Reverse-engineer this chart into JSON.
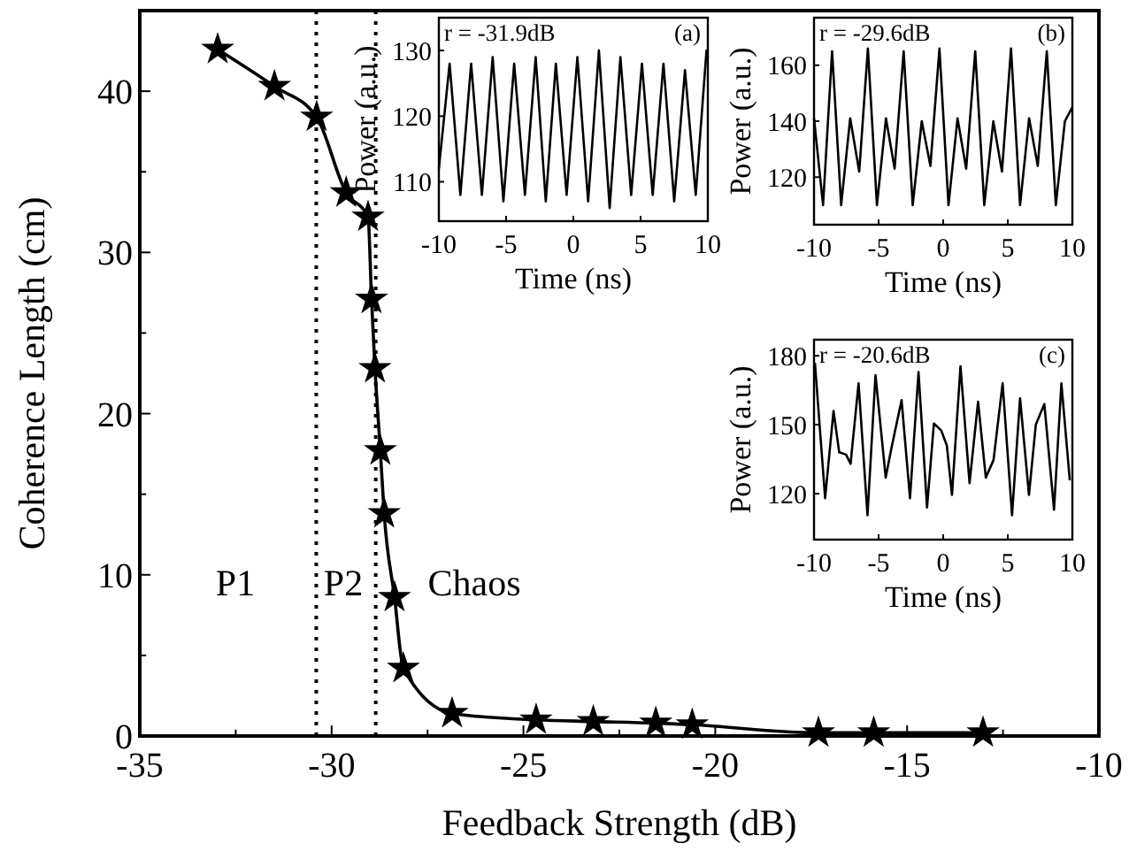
{
  "chart_data": [
    {
      "type": "line",
      "xlabel": "Feedback Strength (dB)",
      "ylabel": "Coherence Length (cm)",
      "marker": "star",
      "line_style": "solid",
      "x": [
        -32.97,
        -31.49,
        -30.39,
        -29.62,
        -29.05,
        -28.96,
        -28.87,
        -28.73,
        -28.63,
        -28.36,
        -28.13,
        -26.86,
        -24.67,
        -23.18,
        -21.55,
        -20.6,
        -17.31,
        -15.87,
        -13.02
      ],
      "series": [
        {
          "color": "#000000",
          "values": [
            42.6,
            40.3,
            38.4,
            33.7,
            32.2,
            27.1,
            22.8,
            17.7,
            13.8,
            8.6,
            4.2,
            1.4,
            1.0,
            0.9,
            0.8,
            0.7,
            0.2,
            0.2,
            0.2
          ]
        }
      ],
      "xlim": [
        -35,
        -10
      ],
      "xticks": [
        -35,
        {
          "value": -32.5,
          "label": null
        },
        -30,
        {
          "value": -27.5,
          "label": null
        },
        -25,
        {
          "value": -22.5,
          "label": null
        },
        -20,
        {
          "value": -17.5,
          "label": null
        },
        -15,
        {
          "value": -12.5,
          "label": null
        },
        -10
      ],
      "ylim": [
        0,
        45
      ],
      "yticks": [
        0,
        {
          "value": 5,
          "label": null
        },
        10,
        {
          "value": 15,
          "label": null
        },
        20,
        {
          "value": 25,
          "label": null
        },
        30,
        {
          "value": 35,
          "label": null
        },
        40
      ],
      "ref_lines": [
        {
          "axis": "x",
          "value": -30.4,
          "line_style": "dotted",
          "color": "#000000"
        },
        {
          "axis": "x",
          "value": -28.85,
          "line_style": "dotted",
          "color": "#000000"
        }
      ],
      "annotations": [
        "P1",
        "P2",
        "Chaos"
      ]
    },
    {
      "type": "line",
      "xlabel": "Time (ns)",
      "ylabel": "Power (a.u.)",
      "marker": "none",
      "annotations": [
        "r = -31.9dB",
        "(a)"
      ],
      "x": [
        -10,
        -9.2,
        -8.4,
        -7.6,
        -6.8,
        -6.0,
        -5.2,
        -4.4,
        -3.6,
        -2.8,
        -2.05,
        -1.3,
        -0.5,
        0.3,
        1.1,
        1.9,
        2.7,
        3.5,
        4.3,
        5.1,
        5.9,
        6.7,
        7.5,
        8.3,
        9.1,
        9.9,
        10
      ],
      "series": [
        {
          "color": "#000000",
          "values": [
            112,
            128,
            108,
            128,
            108,
            129,
            107,
            128,
            108,
            129,
            107,
            128,
            108,
            129,
            107,
            130,
            106,
            129,
            108,
            128,
            108,
            128,
            107,
            127,
            108,
            130,
            129
          ]
        }
      ],
      "xlim": [
        -10,
        10
      ],
      "xticks": [
        -10,
        -5,
        0,
        5,
        10
      ],
      "ylim": [
        104,
        135
      ],
      "yticks": [
        110,
        120,
        130
      ]
    },
    {
      "type": "line",
      "xlabel": "Time (ns)",
      "ylabel": "Power (a.u.)",
      "marker": "none",
      "annotations": [
        "r = -29.6dB",
        "(b)"
      ],
      "x": [
        -10,
        -9.3,
        -8.6,
        -7.9,
        -7.2,
        -6.5,
        -5.83,
        -5.13,
        -4.43,
        -3.76,
        -3.06,
        -2.36,
        -1.66,
        -0.99,
        -0.29,
        0.41,
        1.11,
        1.78,
        2.48,
        3.18,
        3.88,
        4.55,
        5.25,
        5.95,
        6.65,
        7.32,
        8.02,
        8.72,
        9.42,
        10
      ],
      "series": [
        {
          "color": "#000000",
          "values": [
            141,
            110,
            165,
            110,
            141,
            122,
            166,
            110,
            141,
            123,
            165,
            110,
            140,
            124,
            166,
            110,
            141,
            123,
            165,
            110,
            140,
            122,
            166,
            110,
            141,
            124,
            165,
            110,
            140,
            145
          ]
        }
      ],
      "xlim": [
        -10,
        10
      ],
      "xticks": [
        -10,
        -5,
        0,
        5,
        10
      ],
      "ylim": [
        103,
        177
      ],
      "yticks": [
        120,
        140,
        160
      ]
    },
    {
      "type": "line",
      "xlabel": "Time (ns)",
      "ylabel": "Power (a.u.)",
      "marker": "none",
      "annotations": [
        "r = -20.6dB",
        "(c)"
      ],
      "x": [
        -9.93,
        -9.14,
        -8.49,
        -8.05,
        -7.52,
        -7.17,
        -6.55,
        -5.86,
        -5.24,
        -4.45,
        -4.0,
        -3.22,
        -2.57,
        -1.91,
        -1.25,
        -0.72,
        -0.15,
        0.28,
        0.68,
        1.34,
        2.04,
        2.7,
        3.3,
        3.9,
        4.6,
        5.33,
        5.95,
        6.64,
        7.17,
        7.83,
        8.58,
        9.15,
        9.8
      ],
      "series": [
        {
          "color": "#000000",
          "values": [
            177,
            118,
            156,
            138,
            137,
            133,
            168,
            110.6,
            171.6,
            127,
            140,
            160.7,
            118,
            172.9,
            114,
            150.5,
            147.5,
            141,
            119.5,
            175.4,
            124.6,
            160,
            127,
            134.7,
            168,
            110.6,
            161.5,
            119.5,
            150,
            159,
            113,
            168,
            125.8
          ]
        }
      ],
      "xlim": [
        -10,
        10
      ],
      "xticks": [
        -10,
        -5,
        0,
        5,
        10
      ],
      "ylim": [
        100,
        187
      ],
      "yticks": [
        120,
        150,
        180
      ]
    }
  ]
}
